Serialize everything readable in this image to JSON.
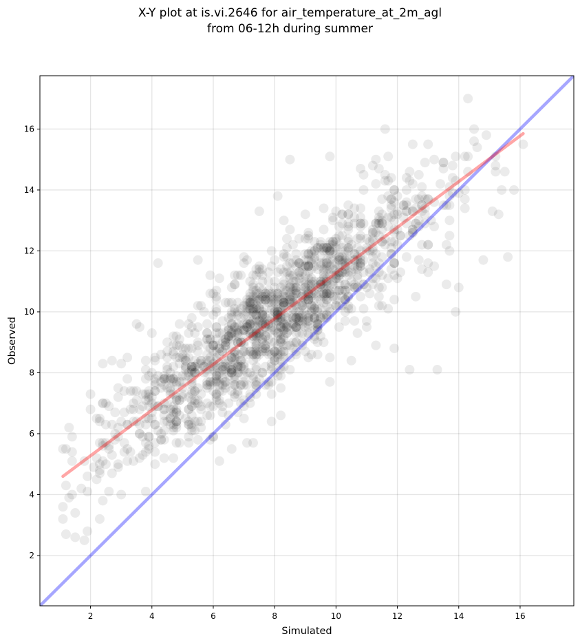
{
  "chart_data": {
    "type": "scatter",
    "title": "X-Y plot at is.vi.2646 for air_temperature_at_2m_agl",
    "subtitle": "from 06-12h during summer",
    "xlabel": "Simulated",
    "ylabel": "Observed",
    "xlim": [
      0.35,
      17.75
    ],
    "ylim": [
      0.35,
      17.75
    ],
    "xticks": [
      2,
      4,
      6,
      8,
      10,
      12,
      14,
      16
    ],
    "yticks": [
      2,
      4,
      6,
      8,
      10,
      12,
      14,
      16
    ],
    "grid": true,
    "point_color": "#000000",
    "point_alpha": 0.08,
    "n_points": 1500,
    "cluster_model": {
      "x_mean": 7.9,
      "x_sd": 2.6,
      "slope": 0.75,
      "intercept": 3.8,
      "residual_sd": 1.0,
      "x_range": [
        1.1,
        16.1
      ]
    },
    "points": [
      [
        1.1,
        3.6
      ],
      [
        1.1,
        3.2
      ],
      [
        1.2,
        2.7
      ],
      [
        1.5,
        2.6
      ],
      [
        1.8,
        2.5
      ],
      [
        1.9,
        2.8
      ],
      [
        1.5,
        3.4
      ],
      [
        1.1,
        5.5
      ],
      [
        1.4,
        5.4
      ],
      [
        2.3,
        3.2
      ],
      [
        2.4,
        3.8
      ],
      [
        3.8,
        4.1
      ],
      [
        14.3,
        17.0
      ],
      [
        11.6,
        16.0
      ],
      [
        8.5,
        15.0
      ],
      [
        9.8,
        15.1
      ],
      [
        12.5,
        15.5
      ],
      [
        15.8,
        14.0
      ],
      [
        15.6,
        11.8
      ],
      [
        15.3,
        13.2
      ],
      [
        14.8,
        11.7
      ],
      [
        14.0,
        10.8
      ],
      [
        13.3,
        8.1
      ],
      [
        12.4,
        8.1
      ],
      [
        11.9,
        8.8
      ],
      [
        13.9,
        10.0
      ],
      [
        13.6,
        10.9
      ],
      [
        4.2,
        11.6
      ],
      [
        5.5,
        11.7
      ],
      [
        9.8,
        7.7
      ],
      [
        3.5,
        9.6
      ],
      [
        3.6,
        9.5
      ],
      [
        7.9,
        6.4
      ],
      [
        8.2,
        6.6
      ],
      [
        7.3,
        5.7
      ],
      [
        7.1,
        5.7
      ],
      [
        6.6,
        5.5
      ],
      [
        6.2,
        5.1
      ],
      [
        2.1,
        4.9
      ],
      [
        2.3,
        6.5
      ],
      [
        2.4,
        8.3
      ],
      [
        2.7,
        8.4
      ],
      [
        3.0,
        8.3
      ],
      [
        16.1,
        15.5
      ],
      [
        14.6,
        15.4
      ],
      [
        13.2,
        15.0
      ],
      [
        13.7,
        12.0
      ],
      [
        12.6,
        10.5
      ],
      [
        12.8,
        11.4
      ],
      [
        13.0,
        12.2
      ],
      [
        11.3,
        8.9
      ],
      [
        10.5,
        8.4
      ],
      [
        8.1,
        13.8
      ],
      [
        7.5,
        13.3
      ],
      [
        8.3,
        13.0
      ],
      [
        5.9,
        5.8
      ],
      [
        6.0,
        5.9
      ],
      [
        4.4,
        5.8
      ],
      [
        10.7,
        9.3
      ],
      [
        11.0,
        9.5
      ],
      [
        11.5,
        10.2
      ],
      [
        12.3,
        12.9
      ],
      [
        9.3,
        9.4
      ],
      [
        9.4,
        9.5
      ]
    ],
    "series": [
      {
        "name": "",
        "type": "identity-line",
        "color": "#0000ff",
        "alpha": 0.35,
        "slope": 1,
        "intercept": 0,
        "x": [
          0.35,
          17.75
        ]
      },
      {
        "name": "",
        "type": "regression-line",
        "color": "#ff0000",
        "alpha": 0.35,
        "x": [
          1.1,
          16.1
        ],
        "y": [
          4.6,
          15.85
        ]
      }
    ]
  }
}
